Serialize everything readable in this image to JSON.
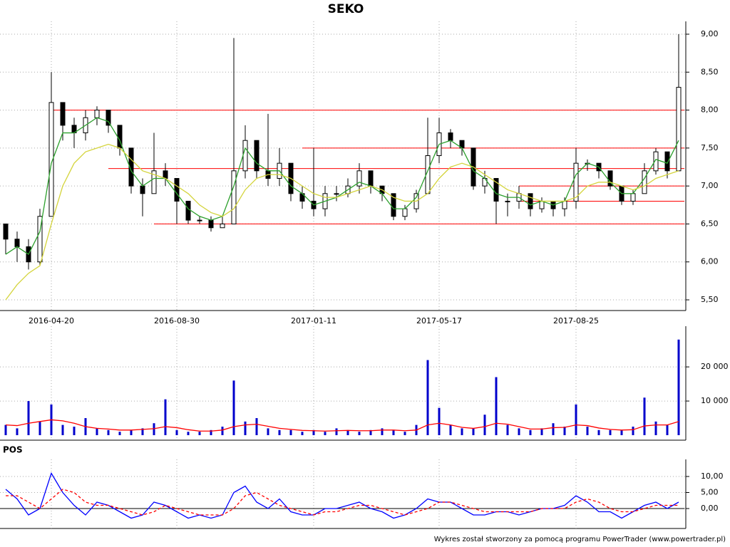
{
  "chart_data": [
    {
      "type": "candlestick",
      "title": "SEKO",
      "categories": [
        null,
        null,
        null,
        null,
        "2016-04-20",
        null,
        null,
        null,
        null,
        null,
        null,
        null,
        null,
        null,
        null,
        "2016-08-30",
        null,
        null,
        null,
        null,
        null,
        null,
        null,
        null,
        null,
        null,
        null,
        "2017-01-11",
        null,
        null,
        null,
        null,
        null,
        null,
        null,
        null,
        null,
        null,
        "2017-05-17",
        null,
        null,
        null,
        null,
        null,
        null,
        null,
        null,
        null,
        null,
        null,
        "2017-08-25",
        null,
        null,
        null,
        null,
        null,
        null,
        null,
        null,
        null
      ],
      "open": [
        6.5,
        6.3,
        6.2,
        6.0,
        6.6,
        8.1,
        7.8,
        7.7,
        7.9,
        8.0,
        7.8,
        7.5,
        7.0,
        6.9,
        7.2,
        7.1,
        6.8,
        6.55,
        6.55,
        6.45,
        6.5,
        7.2,
        7.6,
        7.2,
        7.1,
        7.3,
        6.9,
        6.8,
        6.7,
        6.9,
        6.9,
        7.0,
        7.2,
        7.0,
        6.9,
        6.6,
        6.7,
        6.9,
        7.4,
        7.7,
        7.6,
        7.5,
        7.0,
        7.1,
        6.8,
        6.8,
        6.9,
        6.7,
        6.8,
        6.7,
        6.8,
        7.3,
        7.3,
        7.2,
        7.0,
        6.8,
        6.9,
        7.2,
        7.45,
        7.2
      ],
      "high": [
        6.5,
        6.4,
        6.3,
        6.7,
        8.5,
        8.1,
        7.9,
        8.0,
        8.05,
        8.0,
        7.8,
        7.5,
        7.1,
        7.7,
        7.3,
        7.1,
        6.8,
        6.6,
        6.6,
        6.6,
        8.95,
        7.8,
        7.6,
        7.95,
        7.5,
        7.3,
        7.0,
        7.5,
        7.0,
        7.0,
        7.1,
        7.3,
        7.2,
        7.0,
        6.9,
        6.75,
        6.95,
        7.9,
        7.9,
        7.75,
        7.6,
        7.5,
        7.2,
        7.1,
        6.9,
        7.0,
        6.9,
        6.85,
        6.8,
        6.85,
        7.5,
        7.35,
        7.3,
        7.2,
        7.0,
        6.95,
        7.3,
        7.5,
        7.45,
        9.0
      ],
      "low": [
        6.1,
        6.0,
        5.9,
        5.95,
        6.6,
        7.6,
        7.5,
        7.6,
        7.8,
        7.7,
        7.4,
        6.9,
        6.6,
        6.9,
        7.0,
        6.5,
        6.5,
        6.5,
        6.4,
        6.45,
        6.5,
        7.1,
        7.1,
        7.0,
        7.0,
        6.8,
        6.7,
        6.6,
        6.6,
        6.8,
        6.85,
        6.9,
        6.9,
        6.8,
        6.55,
        6.55,
        6.65,
        6.9,
        7.3,
        7.5,
        7.4,
        6.95,
        6.9,
        6.5,
        6.6,
        6.7,
        6.6,
        6.65,
        6.6,
        6.6,
        6.7,
        7.2,
        7.1,
        6.95,
        6.75,
        6.75,
        6.9,
        7.15,
        7.1,
        7.2
      ],
      "close": [
        6.3,
        6.2,
        6.0,
        6.6,
        8.1,
        7.8,
        7.7,
        7.9,
        8.0,
        7.8,
        7.5,
        7.0,
        6.9,
        7.2,
        7.1,
        6.8,
        6.55,
        6.55,
        6.45,
        6.5,
        7.2,
        7.6,
        7.2,
        7.1,
        7.3,
        6.9,
        6.8,
        6.7,
        6.9,
        6.9,
        7.0,
        7.2,
        7.0,
        6.9,
        6.6,
        6.7,
        6.9,
        7.4,
        7.7,
        7.6,
        7.5,
        7.0,
        7.1,
        6.8,
        6.8,
        6.9,
        6.7,
        6.8,
        6.7,
        6.8,
        7.3,
        7.3,
        7.2,
        7.0,
        6.8,
        6.9,
        7.2,
        7.45,
        7.2,
        8.3
      ],
      "series": [
        {
          "color": "#2ca02c",
          "values": [
            6.1,
            6.2,
            6.1,
            6.4,
            7.3,
            7.7,
            7.7,
            7.8,
            7.9,
            7.85,
            7.6,
            7.2,
            7.0,
            7.1,
            7.1,
            6.9,
            6.7,
            6.6,
            6.55,
            6.6,
            7.0,
            7.5,
            7.3,
            7.2,
            7.2,
            7.0,
            6.9,
            6.75,
            6.8,
            6.85,
            6.95,
            7.05,
            7.0,
            6.9,
            6.7,
            6.7,
            6.85,
            7.2,
            7.55,
            7.6,
            7.5,
            7.2,
            7.1,
            6.9,
            6.85,
            6.85,
            6.75,
            6.8,
            6.75,
            6.8,
            7.15,
            7.3,
            7.25,
            7.05,
            6.9,
            6.9,
            7.1,
            7.35,
            7.3,
            7.6
          ]
        },
        {
          "color": "#d4d43c",
          "values": [
            5.5,
            5.7,
            5.85,
            5.95,
            6.5,
            7.0,
            7.3,
            7.45,
            7.5,
            7.55,
            7.5,
            7.35,
            7.2,
            7.15,
            7.1,
            7.0,
            6.9,
            6.75,
            6.65,
            6.6,
            6.7,
            6.95,
            7.1,
            7.15,
            7.15,
            7.1,
            7.0,
            6.9,
            6.85,
            6.85,
            6.9,
            6.95,
            7.0,
            6.95,
            6.85,
            6.8,
            6.8,
            6.9,
            7.1,
            7.25,
            7.3,
            7.25,
            7.15,
            7.05,
            6.95,
            6.9,
            6.85,
            6.8,
            6.8,
            6.8,
            6.85,
            7.0,
            7.05,
            7.05,
            7.0,
            6.95,
            7.0,
            7.1,
            7.15,
            7.2
          ]
        }
      ],
      "reference_lines": {
        "color": "#ff0000",
        "lines": [
          {
            "value": 8.0,
            "from": 4
          },
          {
            "value": 7.5,
            "from": 26
          },
          {
            "value": 7.23,
            "from": 9
          },
          {
            "value": 7.0,
            "from": 45
          },
          {
            "value": 6.8,
            "from": 45
          },
          {
            "value": 6.5,
            "from": 13
          }
        ]
      },
      "ylim": [
        5.5,
        9.0
      ],
      "yticks": [
        {
          "value": 5.5,
          "label": "5,50"
        },
        {
          "value": 6.0,
          "label": "6,00"
        },
        {
          "value": 6.5,
          "label": "6,50"
        },
        {
          "value": 7.0,
          "label": "7,00"
        },
        {
          "value": 7.5,
          "label": "7,50"
        },
        {
          "value": 8.0,
          "label": "8,00"
        },
        {
          "value": 8.5,
          "label": "8,50"
        },
        {
          "value": 9.0,
          "label": "9,00"
        }
      ],
      "grid": true
    },
    {
      "type": "bar",
      "color": "#0000cc",
      "values": [
        3000,
        2000,
        10000,
        4000,
        9000,
        3000,
        2500,
        5000,
        2000,
        1500,
        1000,
        1500,
        2000,
        3500,
        10500,
        1500,
        1000,
        1000,
        1500,
        2500,
        16000,
        4000,
        5000,
        2000,
        1500,
        1500,
        1000,
        1500,
        1000,
        2000,
        1500,
        1000,
        1500,
        2000,
        1500,
        1000,
        3000,
        22000,
        8000,
        3000,
        2000,
        2000,
        6000,
        17000,
        3000,
        2000,
        1500,
        2000,
        3500,
        2500,
        9000,
        2500,
        1500,
        1500,
        1500,
        2500,
        11000,
        4000,
        3000,
        28000
      ],
      "series": [
        {
          "color": "#ff0000",
          "values": [
            3000,
            2800,
            3500,
            4000,
            4500,
            4200,
            3500,
            2500,
            2000,
            1800,
            1500,
            1500,
            1700,
            1900,
            2500,
            2200,
            1600,
            1200,
            1200,
            1500,
            2500,
            3000,
            3200,
            2600,
            2000,
            1700,
            1400,
            1300,
            1200,
            1300,
            1400,
            1300,
            1300,
            1500,
            1500,
            1300,
            1500,
            3000,
            3500,
            3000,
            2300,
            2000,
            2500,
            3500,
            3200,
            2500,
            1800,
            1800,
            2200,
            2300,
            3000,
            2800,
            2100,
            1700,
            1500,
            1600,
            2700,
            3000,
            3000,
            4000
          ]
        }
      ],
      "ylim": [
        0,
        31500
      ],
      "yticks": [
        {
          "value": 10000,
          "label": "10 000"
        },
        {
          "value": 20000,
          "label": "20 000"
        }
      ],
      "grid": true
    },
    {
      "type": "line",
      "title": "POS",
      "series": [
        {
          "color": "#0000ff",
          "values": [
            6,
            3,
            -2,
            0,
            11,
            5,
            1,
            -2,
            2,
            1,
            -1,
            -3,
            -2,
            2,
            1,
            -1,
            -3,
            -2,
            -3,
            -2,
            5,
            7,
            2,
            0,
            3,
            -1,
            -2,
            -2,
            0,
            0,
            1,
            2,
            0,
            -1,
            -3,
            -2,
            0,
            3,
            2,
            2,
            0,
            -2,
            -2,
            -1,
            -1,
            -2,
            -1,
            0,
            0,
            1,
            4,
            2,
            -1,
            -1,
            -3,
            -1,
            1,
            2,
            0,
            2
          ]
        },
        {
          "color": "#ff0000",
          "dashed": true,
          "values": [
            4,
            4,
            2,
            0,
            3,
            6,
            5,
            2,
            1,
            1,
            0,
            -1,
            -2,
            -1,
            1,
            0,
            -1,
            -2,
            -2,
            -2,
            0,
            4,
            5,
            3,
            1,
            0,
            -1,
            -2,
            -1,
            -1,
            0,
            1,
            1,
            0,
            -1,
            -2,
            -1,
            0,
            2,
            2,
            1,
            0,
            -1,
            -1,
            -1,
            -1,
            -1,
            0,
            0,
            0,
            2,
            3,
            2,
            0,
            -1,
            -1,
            0,
            1,
            1,
            1
          ]
        }
      ],
      "ylim": [
        -6,
        14
      ],
      "yticks": [
        {
          "value": 0,
          "label": "0,00"
        },
        {
          "value": 5,
          "label": "5,00"
        },
        {
          "value": 10,
          "label": "10,00"
        }
      ],
      "grid": true
    }
  ],
  "footer": "Wykres został stworzony za pomocą programu PowerTrader (www.powertrader.pl)"
}
